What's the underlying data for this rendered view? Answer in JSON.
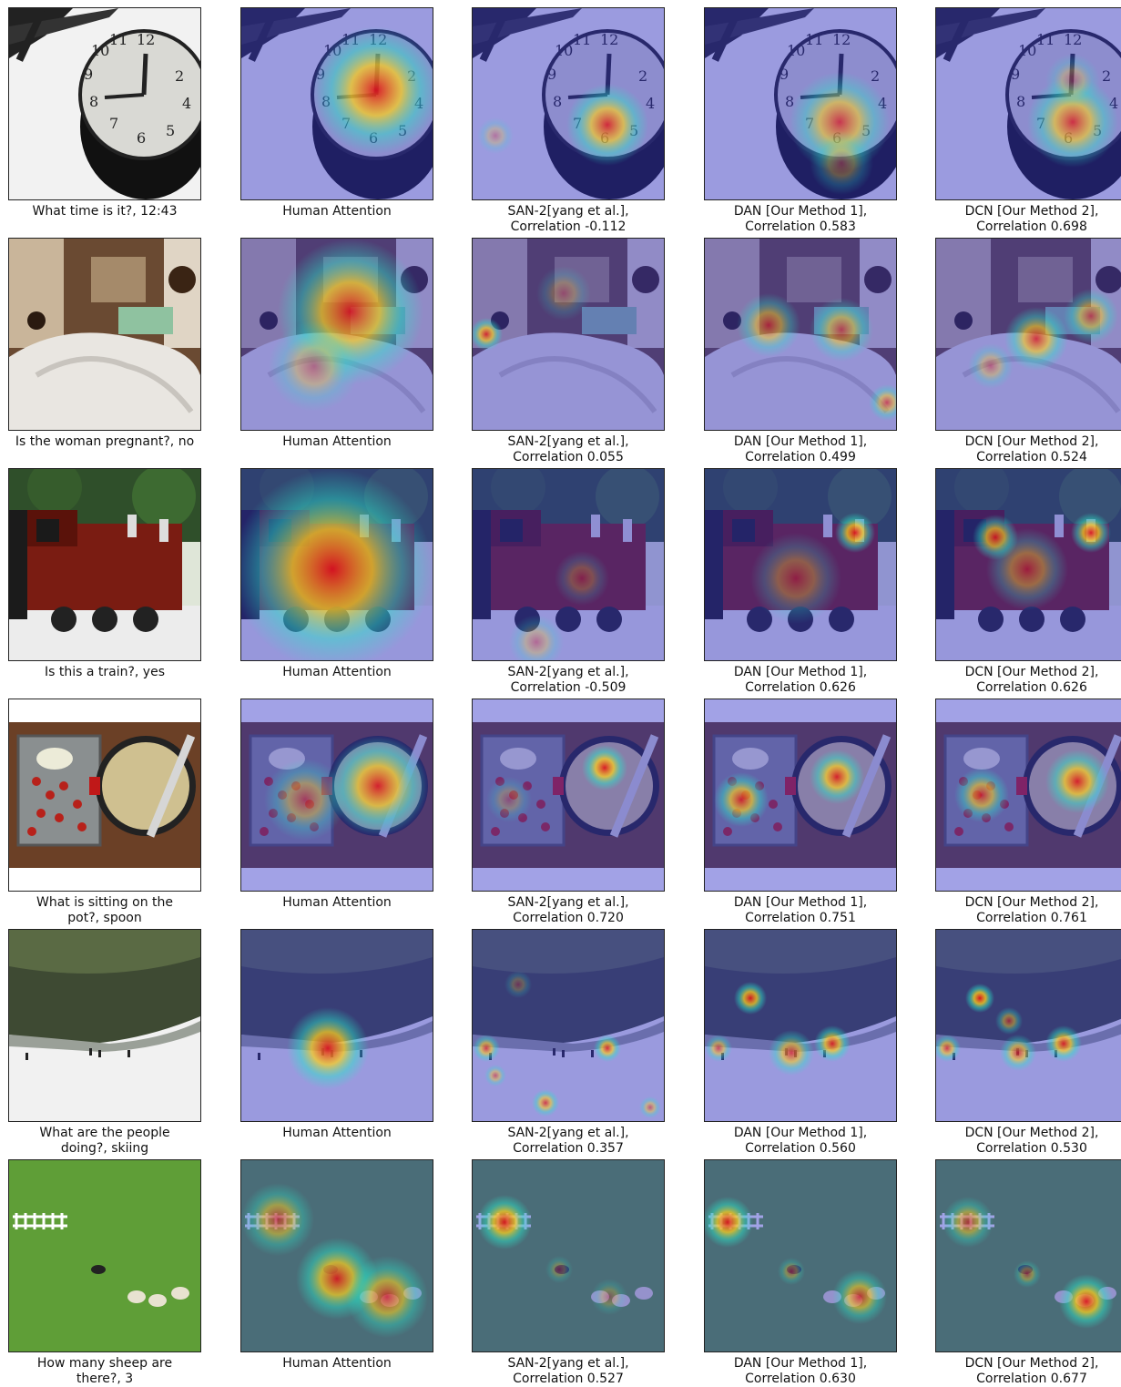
{
  "columns": [
    {
      "key": "input"
    },
    {
      "key": "human",
      "caption": "Human Attention"
    },
    {
      "key": "san",
      "caption_prefix": "SAN-2[yang et al.],"
    },
    {
      "key": "dan",
      "caption_prefix": "DAN [Our Method 1],"
    },
    {
      "key": "dcn",
      "caption_prefix": "DCN [Our Method 2],"
    }
  ],
  "rows": [
    {
      "scene": "clock",
      "question_caption": "What time is it?,  12:43",
      "captions": [
        "What time is it?,  12:43",
        "Human Attention",
        "SAN-2[yang et al.],\n Correlation -0.112",
        "DAN [Our Method 1],\nCorrelation 0.583",
        "DCN [Our Method 2],\nCorrelation 0.698"
      ],
      "correlations": {
        "san": -0.112,
        "dan": 0.583,
        "dcn": 0.698
      }
    },
    {
      "scene": "hospital",
      "captions": [
        "Is the woman pregnant?, no",
        "Human Attention",
        "SAN-2[yang et al.],\nCorrelation 0.055",
        "DAN [Our Method 1],\nCorrelation 0.499",
        "DCN [Our Method 2],\nCorrelation 0.524"
      ],
      "correlations": {
        "san": 0.055,
        "dan": 0.499,
        "dcn": 0.524
      }
    },
    {
      "scene": "train",
      "captions": [
        "Is this a train?,  yes",
        "Human Attention",
        "SAN-2[yang et al.],\n Correlation -0.509",
        "DAN [Our Method 1],\nCorrelation 0.626",
        "DCN [Our Method 2],\nCorrelation 0.626"
      ],
      "correlations": {
        "san": -0.509,
        "dan": 0.626,
        "dcn": 0.626
      }
    },
    {
      "scene": "kitchen",
      "captions": [
        "What is sitting on the\npot?, spoon",
        "Human Attention",
        "SAN-2[yang et al.],\nCorrelation 0.720",
        "DAN [Our Method 1],\nCorrelation 0.751",
        "DCN [Our Method 2],\nCorrelation 0.761"
      ],
      "correlations": {
        "san": 0.72,
        "dan": 0.751,
        "dcn": 0.761
      }
    },
    {
      "scene": "ski",
      "captions": [
        "What are the people\ndoing?, skiing",
        "Human Attention",
        "SAN-2[yang et al.],\nCorrelation 0.357",
        "DAN [Our Method 1],\nCorrelation 0.560",
        "DCN [Our Method 2],\nCorrelation 0.530"
      ],
      "correlations": {
        "san": 0.357,
        "dan": 0.56,
        "dcn": 0.53
      }
    },
    {
      "scene": "sheep",
      "captions": [
        "How many sheep are\nthere?,  3",
        "Human Attention",
        "SAN-2[yang et al.],\nCorrelation 0.527",
        "DAN [Our Method 1],\nCorrelation 0.630",
        "DCN [Our Method 2],\nCorrelation 0.677"
      ],
      "correlations": {
        "san": 0.527,
        "dan": 0.63,
        "dcn": 0.677
      }
    }
  ],
  "colors": {
    "overlay_tint": "#3030c8",
    "heat_hot": "#e0101a",
    "heat_warm": "#ffd21a",
    "heat_cool": "#29e6c8"
  }
}
